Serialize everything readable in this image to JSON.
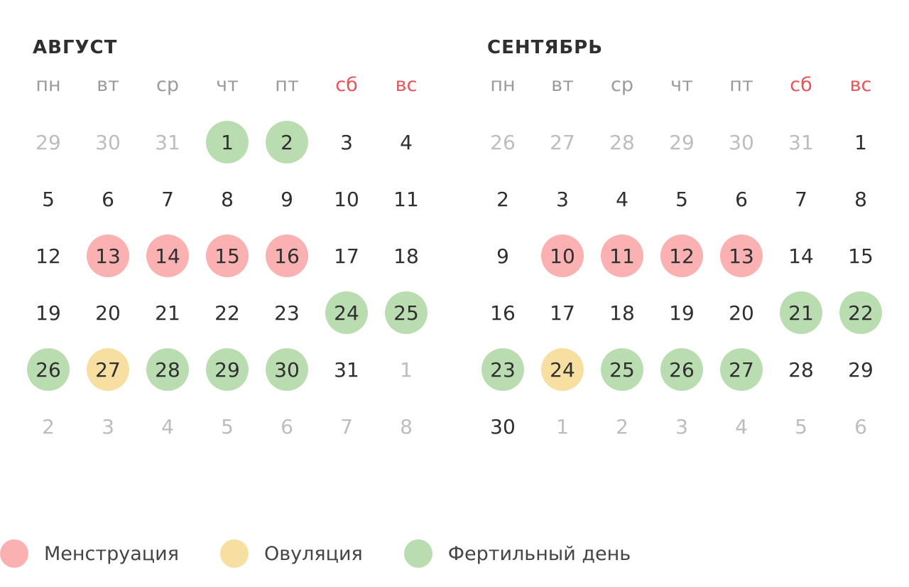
{
  "colors": {
    "menstruation": "#fbb1b1",
    "ovulation": "#f7dea1",
    "fertile": "#b9ddb1",
    "weekend_header": "#e8545a",
    "muted_day": "#bdbdbd",
    "text": "#2f2f2f"
  },
  "weekdays": [
    {
      "label": "пн",
      "weekend": false
    },
    {
      "label": "вт",
      "weekend": false
    },
    {
      "label": "ср",
      "weekend": false
    },
    {
      "label": "чт",
      "weekend": false
    },
    {
      "label": "пт",
      "weekend": false
    },
    {
      "label": "сб",
      "weekend": true
    },
    {
      "label": "вс",
      "weekend": true
    }
  ],
  "months": [
    {
      "title": "АВГУСТ",
      "weeks": [
        [
          {
            "d": "29",
            "muted": true
          },
          {
            "d": "30",
            "muted": true
          },
          {
            "d": "31",
            "muted": true
          },
          {
            "d": "1",
            "mark": "fertile"
          },
          {
            "d": "2",
            "mark": "fertile"
          },
          {
            "d": "3"
          },
          {
            "d": "4"
          }
        ],
        [
          {
            "d": "5"
          },
          {
            "d": "6"
          },
          {
            "d": "7"
          },
          {
            "d": "8"
          },
          {
            "d": "9"
          },
          {
            "d": "10"
          },
          {
            "d": "11"
          }
        ],
        [
          {
            "d": "12"
          },
          {
            "d": "13",
            "mark": "menstruation"
          },
          {
            "d": "14",
            "mark": "menstruation"
          },
          {
            "d": "15",
            "mark": "menstruation"
          },
          {
            "d": "16",
            "mark": "menstruation"
          },
          {
            "d": "17"
          },
          {
            "d": "18"
          }
        ],
        [
          {
            "d": "19"
          },
          {
            "d": "20"
          },
          {
            "d": "21"
          },
          {
            "d": "22"
          },
          {
            "d": "23"
          },
          {
            "d": "24",
            "mark": "fertile"
          },
          {
            "d": "25",
            "mark": "fertile"
          }
        ],
        [
          {
            "d": "26",
            "mark": "fertile"
          },
          {
            "d": "27",
            "mark": "ovulation"
          },
          {
            "d": "28",
            "mark": "fertile"
          },
          {
            "d": "29",
            "mark": "fertile"
          },
          {
            "d": "30",
            "mark": "fertile"
          },
          {
            "d": "31"
          },
          {
            "d": "1",
            "muted": true
          }
        ],
        [
          {
            "d": "2",
            "muted": true
          },
          {
            "d": "3",
            "muted": true
          },
          {
            "d": "4",
            "muted": true
          },
          {
            "d": "5",
            "muted": true
          },
          {
            "d": "6",
            "muted": true
          },
          {
            "d": "7",
            "muted": true
          },
          {
            "d": "8",
            "muted": true
          }
        ]
      ]
    },
    {
      "title": "СЕНТЯБРЬ",
      "weeks": [
        [
          {
            "d": "26",
            "muted": true
          },
          {
            "d": "27",
            "muted": true
          },
          {
            "d": "28",
            "muted": true
          },
          {
            "d": "29",
            "muted": true
          },
          {
            "d": "30",
            "muted": true
          },
          {
            "d": "31",
            "muted": true
          },
          {
            "d": "1"
          }
        ],
        [
          {
            "d": "2"
          },
          {
            "d": "3"
          },
          {
            "d": "4"
          },
          {
            "d": "5"
          },
          {
            "d": "6"
          },
          {
            "d": "7"
          },
          {
            "d": "8"
          }
        ],
        [
          {
            "d": "9"
          },
          {
            "d": "10",
            "mark": "menstruation"
          },
          {
            "d": "11",
            "mark": "menstruation"
          },
          {
            "d": "12",
            "mark": "menstruation"
          },
          {
            "d": "13",
            "mark": "menstruation"
          },
          {
            "d": "14"
          },
          {
            "d": "15"
          }
        ],
        [
          {
            "d": "16"
          },
          {
            "d": "17"
          },
          {
            "d": "18"
          },
          {
            "d": "19"
          },
          {
            "d": "20"
          },
          {
            "d": "21",
            "mark": "fertile"
          },
          {
            "d": "22",
            "mark": "fertile"
          }
        ],
        [
          {
            "d": "23",
            "mark": "fertile"
          },
          {
            "d": "24",
            "mark": "ovulation"
          },
          {
            "d": "25",
            "mark": "fertile"
          },
          {
            "d": "26",
            "mark": "fertile"
          },
          {
            "d": "27",
            "mark": "fertile"
          },
          {
            "d": "28"
          },
          {
            "d": "29"
          }
        ],
        [
          {
            "d": "30"
          },
          {
            "d": "1",
            "muted": true
          },
          {
            "d": "2",
            "muted": true
          },
          {
            "d": "3",
            "muted": true
          },
          {
            "d": "4",
            "muted": true
          },
          {
            "d": "5",
            "muted": true
          },
          {
            "d": "6",
            "muted": true
          }
        ]
      ]
    }
  ],
  "legend": [
    {
      "key": "menstruation",
      "label": "Менструация"
    },
    {
      "key": "ovulation",
      "label": "Овуляция"
    },
    {
      "key": "fertile",
      "label": "Фертильный день"
    }
  ]
}
